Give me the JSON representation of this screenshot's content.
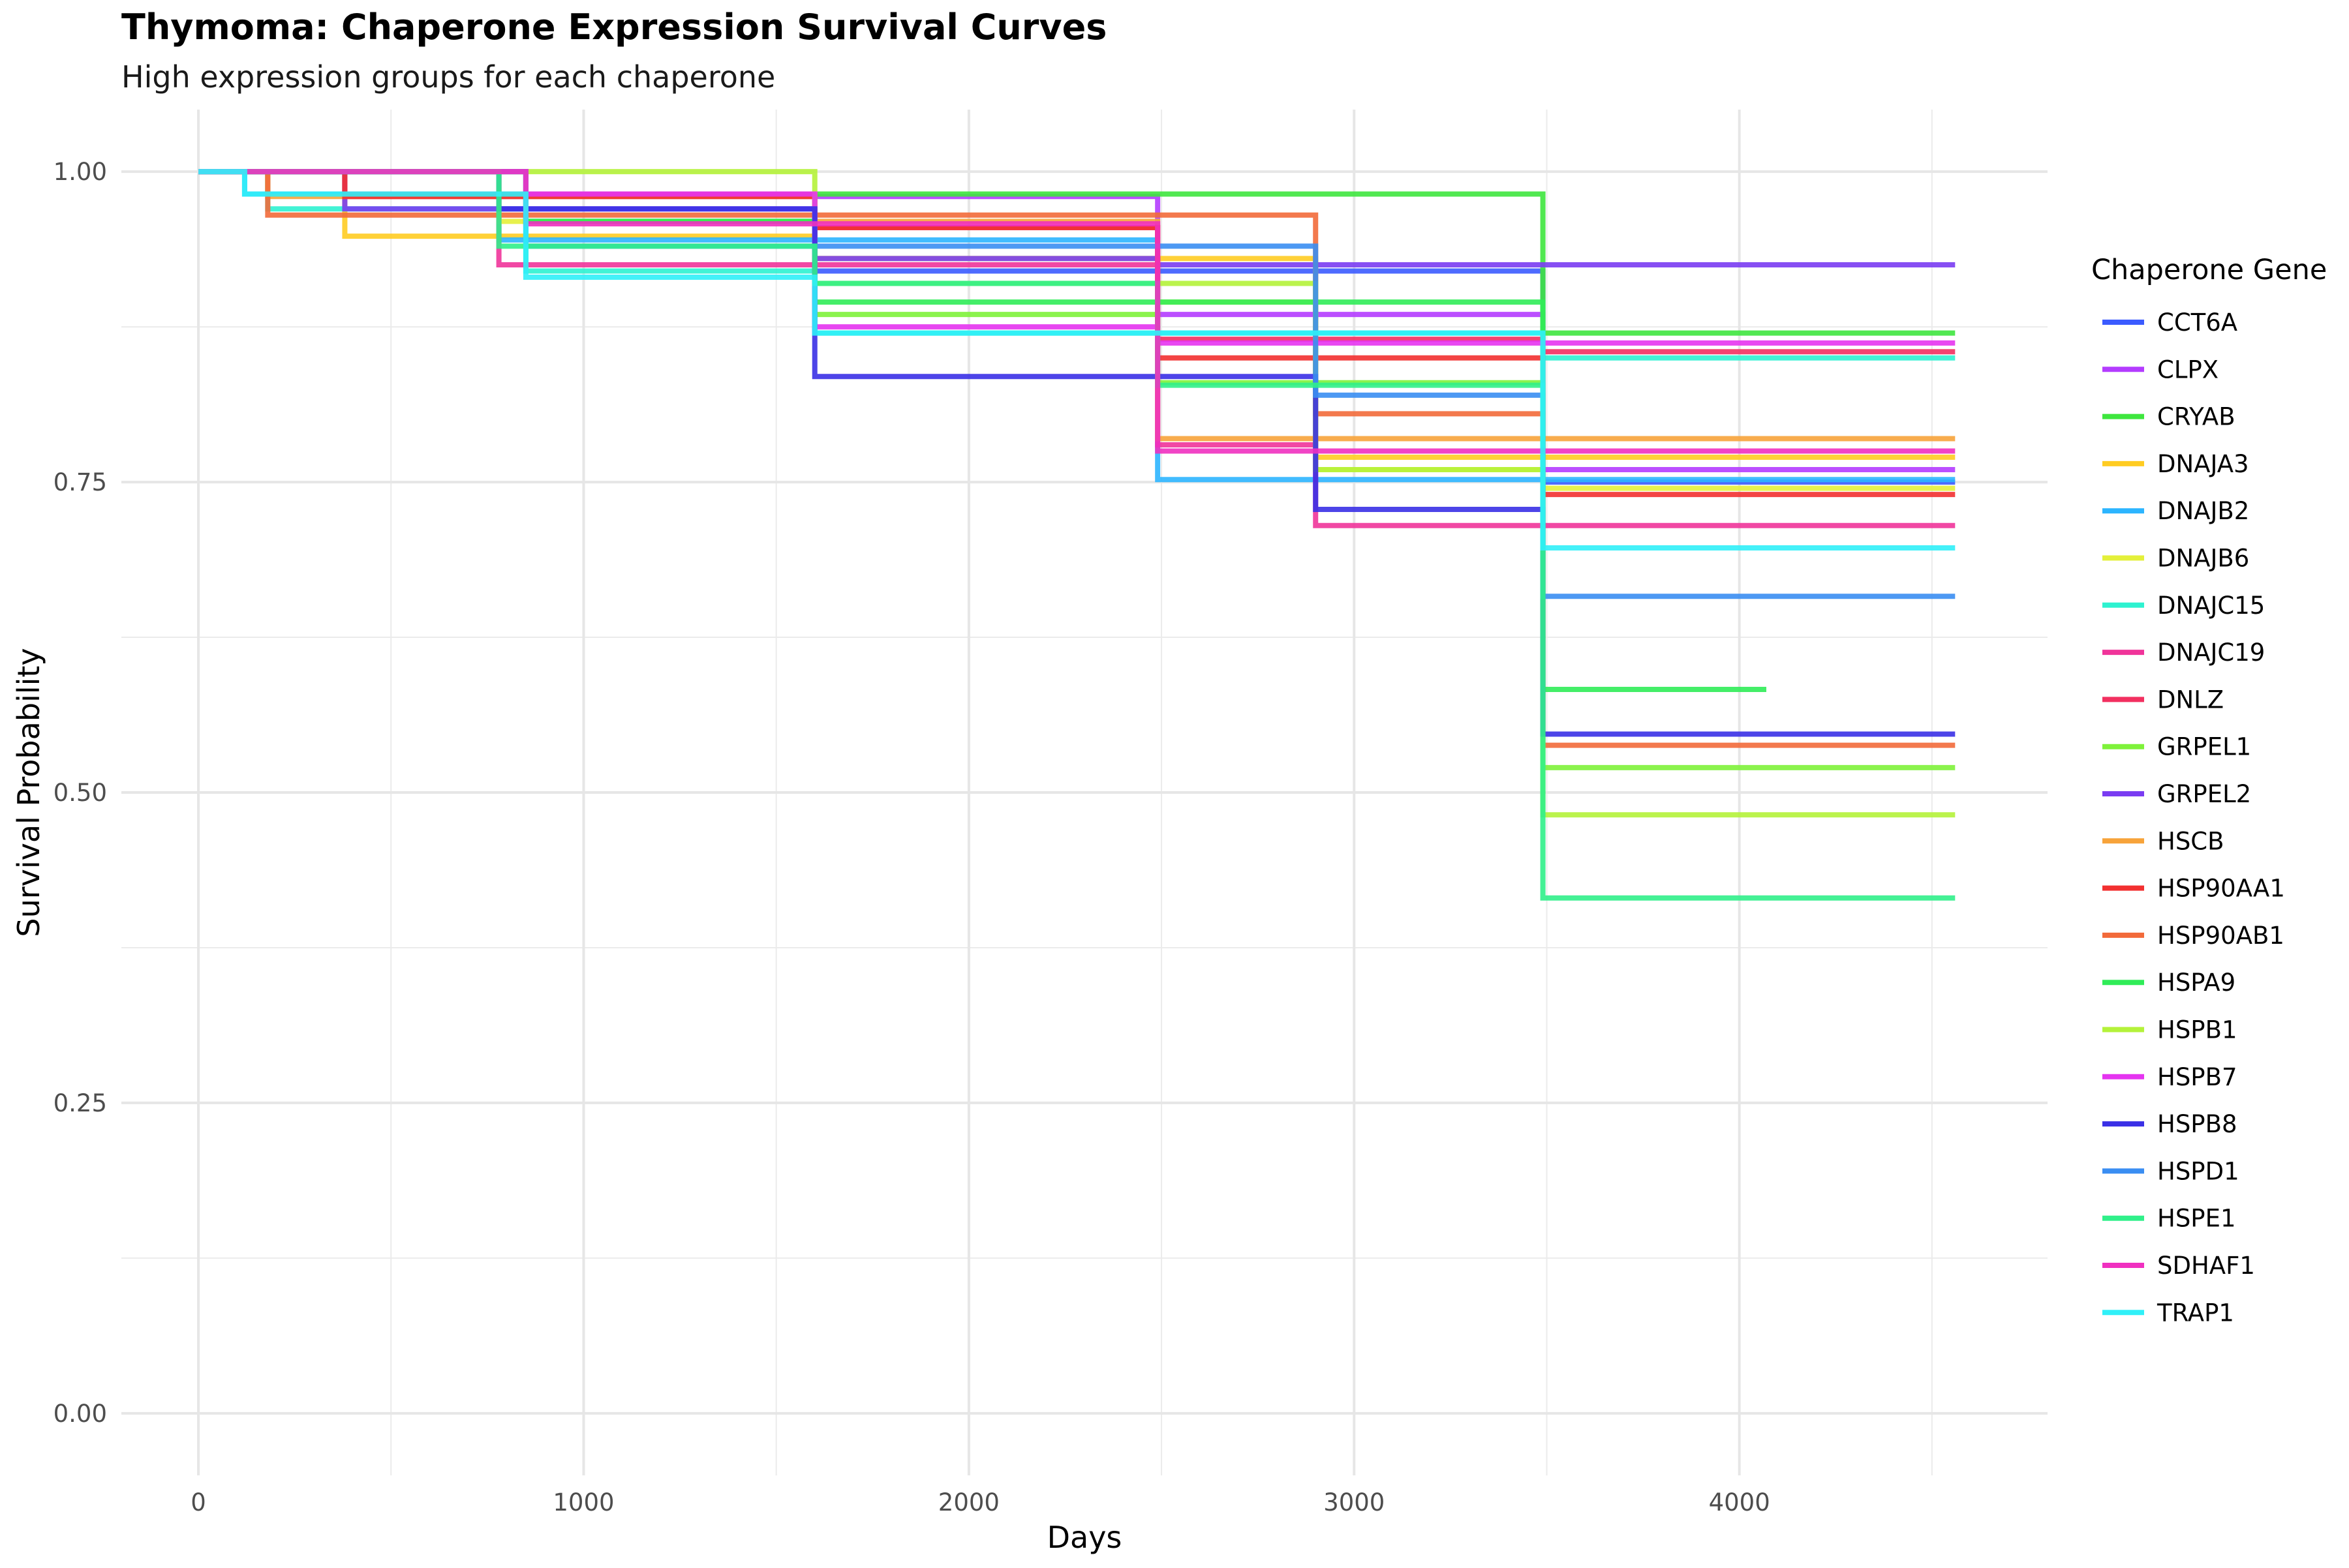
{
  "chart_data": {
    "type": "line",
    "title": "Thymoma: Chaperone Expression Survival Curves",
    "subtitle": "High expression groups for each chaperone",
    "xlabel": "Days",
    "ylabel": "Survival Probability",
    "xlim": [
      -200,
      4800
    ],
    "ylim": [
      -0.05,
      1.05
    ],
    "xticks": [
      0,
      1000,
      2000,
      3000,
      4000
    ],
    "xtick_labels": [
      "0",
      "1000",
      "2000",
      "3000",
      "4000"
    ],
    "yticks": [
      0,
      0.25,
      0.5,
      0.75,
      1.0
    ],
    "ytick_labels": [
      "0.00",
      "0.25",
      "0.50",
      "0.75",
      "1.00"
    ],
    "grid": true,
    "legend": {
      "title": "Chaperone Gene",
      "position": "right"
    },
    "series": [
      {
        "name": "CCT6A",
        "color": "#3b5bff",
        "x": [
          0,
          850,
          1600,
          2900,
          3490,
          4560
        ],
        "y": [
          1.0,
          0.96,
          0.92,
          0.92,
          0.75,
          0.75
        ]
      },
      {
        "name": "CLPX",
        "color": "#b43cff",
        "x": [
          0,
          380,
          2490,
          2900,
          3490,
          4560
        ],
        "y": [
          1.0,
          0.98,
          0.885,
          0.885,
          0.76,
          0.76
        ]
      },
      {
        "name": "CRYAB",
        "color": "#3ee63e",
        "x": [
          0,
          180,
          780,
          2900,
          3490,
          4560
        ],
        "y": [
          1.0,
          0.982,
          0.982,
          0.982,
          0.87,
          0.87
        ]
      },
      {
        "name": "DNAJA3",
        "color": "#ffcc22",
        "x": [
          0,
          380,
          1600,
          2900,
          3490,
          4560
        ],
        "y": [
          1.0,
          0.948,
          0.93,
          0.77,
          0.77,
          0.77
        ]
      },
      {
        "name": "DNAJB2",
        "color": "#2cb5ff",
        "x": [
          0,
          120,
          780,
          2490,
          3490,
          4560
        ],
        "y": [
          1.0,
          0.982,
          0.945,
          0.752,
          0.752,
          0.752
        ]
      },
      {
        "name": "DNAJB6",
        "color": "#e4f03a",
        "x": [
          0,
          780,
          1600,
          2490,
          2900,
          3490,
          4560
        ],
        "y": [
          1.0,
          0.96,
          0.93,
          0.895,
          0.76,
          0.745,
          0.745
        ]
      },
      {
        "name": "DNAJC15",
        "color": "#2ef2d0",
        "x": [
          0,
          180,
          850,
          1600,
          3490,
          4560
        ],
        "y": [
          1.0,
          0.97,
          0.92,
          0.87,
          0.85,
          0.85
        ]
      },
      {
        "name": "DNAJC19",
        "color": "#f0349a",
        "x": [
          0,
          780,
          2490,
          2900,
          4560
        ],
        "y": [
          1.0,
          0.925,
          0.78,
          0.715,
          0.715
        ]
      },
      {
        "name": "DNLZ",
        "color": "#f23060",
        "x": [
          0,
          380,
          1600,
          2490,
          3490,
          4560
        ],
        "y": [
          1.0,
          0.982,
          0.955,
          0.865,
          0.855,
          0.855
        ]
      },
      {
        "name": "GRPEL1",
        "color": "#7ef23a",
        "x": [
          0,
          850,
          1600,
          2490,
          3490,
          4560
        ],
        "y": [
          1.0,
          0.96,
          0.885,
          0.83,
          0.52,
          0.52
        ]
      },
      {
        "name": "GRPEL2",
        "color": "#7a3cf2",
        "x": [
          0,
          380,
          1600,
          2490,
          4560
        ],
        "y": [
          1.0,
          0.97,
          0.93,
          0.925,
          0.925
        ]
      },
      {
        "name": "HSCB",
        "color": "#f7a33a",
        "x": [
          0,
          180,
          1600,
          2490,
          4560
        ],
        "y": [
          1.0,
          0.98,
          0.96,
          0.785,
          0.785
        ]
      },
      {
        "name": "HSP90AA1",
        "color": "#f23030",
        "x": [
          0,
          380,
          1600,
          2490,
          3490,
          4560
        ],
        "y": [
          1.0,
          0.98,
          0.955,
          0.85,
          0.74,
          0.74
        ]
      },
      {
        "name": "HSP90AB1",
        "color": "#f26a3a",
        "x": [
          0,
          180,
          1600,
          2900,
          3490,
          4560
        ],
        "y": [
          1.0,
          0.965,
          0.965,
          0.805,
          0.538,
          0.538
        ]
      },
      {
        "name": "HSPA9",
        "color": "#30ec58",
        "x": [
          0,
          850,
          1600,
          2490,
          3490,
          4070
        ],
        "y": [
          1.0,
          0.96,
          0.895,
          0.895,
          0.583,
          0.583
        ]
      },
      {
        "name": "HSPB1",
        "color": "#b4f23a",
        "x": [
          0,
          780,
          1600,
          2900,
          3490,
          4560
        ],
        "y": [
          1.0,
          1.0,
          0.91,
          0.76,
          0.482,
          0.482
        ]
      },
      {
        "name": "HSPB7",
        "color": "#e534f0",
        "x": [
          0,
          850,
          1600,
          2490,
          4560
        ],
        "y": [
          1.0,
          0.982,
          0.875,
          0.862,
          0.862
        ]
      },
      {
        "name": "HSPB8",
        "color": "#3a30e6",
        "x": [
          0,
          780,
          1600,
          2900,
          3490,
          4560
        ],
        "y": [
          1.0,
          0.97,
          0.835,
          0.728,
          0.547,
          0.547
        ]
      },
      {
        "name": "HSPD1",
        "color": "#3a8ef2",
        "x": [
          0,
          850,
          1600,
          2900,
          3490,
          4560
        ],
        "y": [
          1.0,
          0.94,
          0.94,
          0.82,
          0.658,
          0.658
        ]
      },
      {
        "name": "HSPE1",
        "color": "#30f08a",
        "x": [
          0,
          780,
          1600,
          2490,
          3490,
          4560
        ],
        "y": [
          1.0,
          0.94,
          0.91,
          0.828,
          0.415,
          0.415
        ]
      },
      {
        "name": "SDHAF1",
        "color": "#f030c0",
        "x": [
          0,
          850,
          2490,
          3490,
          4560
        ],
        "y": [
          1.0,
          0.958,
          0.775,
          0.775,
          0.775
        ]
      },
      {
        "name": "TRAP1",
        "color": "#30f0f8",
        "x": [
          0,
          120,
          850,
          1600,
          3490,
          4560
        ],
        "y": [
          1.0,
          0.982,
          0.915,
          0.87,
          0.697,
          0.697
        ]
      }
    ]
  }
}
